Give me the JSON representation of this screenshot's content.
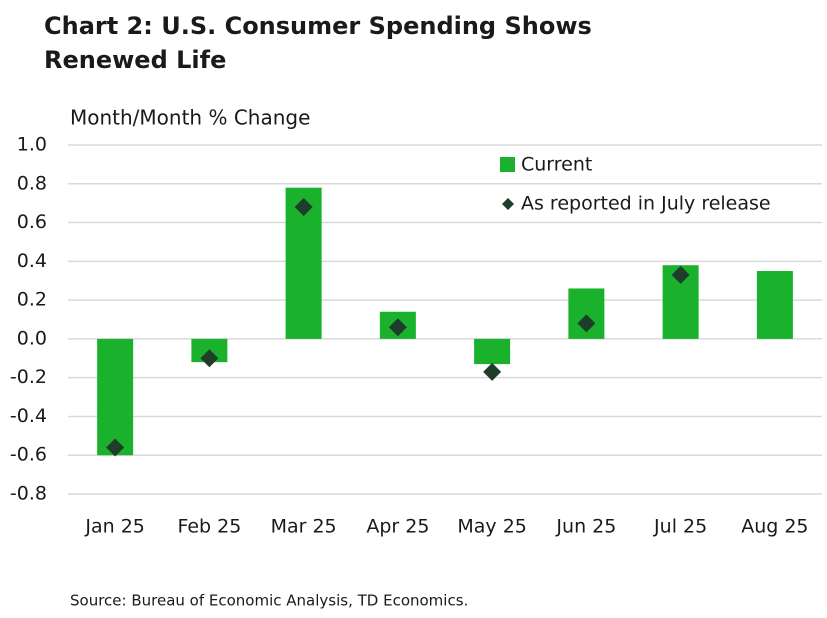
{
  "chart_data": {
    "type": "bar",
    "title": "Chart 2: U.S. Consumer Spending Shows",
    "title_line2": "Renewed Life",
    "y_label": "Month/Month % Change",
    "source": "Source: Bureau of Economic Analysis, TD Economics.",
    "categories": [
      "Jan 25",
      "Feb 25",
      "Mar 25",
      "Apr 25",
      "May 25",
      "Jun 25",
      "Jul 25",
      "Aug 25"
    ],
    "series": [
      {
        "name": "Current",
        "type": "bar",
        "color": "#1ab22c",
        "values": [
          -0.6,
          -0.12,
          0.78,
          0.14,
          -0.13,
          0.26,
          0.38,
          0.35
        ]
      },
      {
        "name": "As reported in July release",
        "type": "scatter",
        "color": "#1e3d2b",
        "values": [
          -0.56,
          -0.1,
          0.68,
          0.06,
          -0.17,
          0.08,
          0.33,
          null
        ]
      }
    ],
    "ylim": [
      -0.8,
      1.0
    ],
    "yticks": [
      {
        "value": 1.0,
        "label": "1.0"
      },
      0.8,
      0.6,
      0.4,
      0.2,
      {
        "value": 0,
        "label": "0.0"
      },
      -0.2,
      -0.4,
      -0.6,
      -0.8
    ],
    "grid": true
  }
}
